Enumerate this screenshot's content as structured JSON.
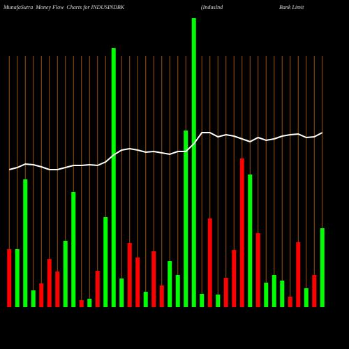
{
  "chart_data": {
    "type": "bar",
    "title": [
      "MunafaSutra  Money Flow  Charts for INDUSINDBK",
      "(IndusInd",
      "Bank Limit"
    ],
    "categories": [
      null,
      null,
      null,
      null,
      null,
      null,
      null,
      null,
      null,
      null,
      null,
      null,
      null,
      null,
      null,
      null,
      null,
      null,
      null,
      null,
      null,
      null,
      null,
      null,
      null,
      null,
      null,
      null,
      null,
      null,
      null,
      null,
      null,
      null,
      null,
      null,
      null,
      null,
      null,
      null
    ],
    "ylim": [
      0,
      420
    ],
    "grid": true,
    "grid_color": "#a0520a",
    "series": [
      {
        "type": "bar",
        "values": [
          83,
          83,
          183,
          24,
          34,
          69,
          51,
          95,
          165,
          10,
          12,
          52,
          129,
          371,
          41,
          92,
          71,
          22,
          80,
          31,
          66,
          46,
          253,
          414,
          19,
          127,
          18,
          42,
          82,
          213,
          190,
          106,
          35,
          46,
          38,
          15,
          93,
          27,
          46,
          113
        ],
        "colors": [
          "#ff0000",
          "#00ff00",
          "#00ff00",
          "#00ff00",
          "#ff0000",
          "#ff0000",
          "#ff0000",
          "#00ff00",
          "#00ff00",
          "#ff0000",
          "#00ff00",
          "#ff0000",
          "#00ff00",
          "#00ff00",
          "#00ff00",
          "#ff0000",
          "#ff0000",
          "#00ff00",
          "#ff0000",
          "#ff0000",
          "#00ff00",
          "#00ff00",
          "#00ff00",
          "#00ff00",
          "#00ff00",
          "#ff0000",
          "#00ff00",
          "#ff0000",
          "#ff0000",
          "#ff0000",
          "#00ff00",
          "#ff0000",
          "#00ff00",
          "#00ff00",
          "#00ff00",
          "#ff0000",
          "#ff0000",
          "#00ff00",
          "#ff0000",
          "#00ff00"
        ]
      },
      {
        "type": "line",
        "color": "#ffffff",
        "values": [
          197,
          200,
          205,
          204,
          201,
          197,
          197,
          200,
          203,
          203,
          204,
          203,
          208,
          218,
          225,
          227,
          225,
          222,
          223,
          221,
          219,
          223,
          223,
          234,
          250,
          250,
          244,
          247,
          245,
          241,
          237,
          243,
          239,
          241,
          245,
          247,
          248,
          243,
          244,
          250
        ]
      }
    ]
  }
}
